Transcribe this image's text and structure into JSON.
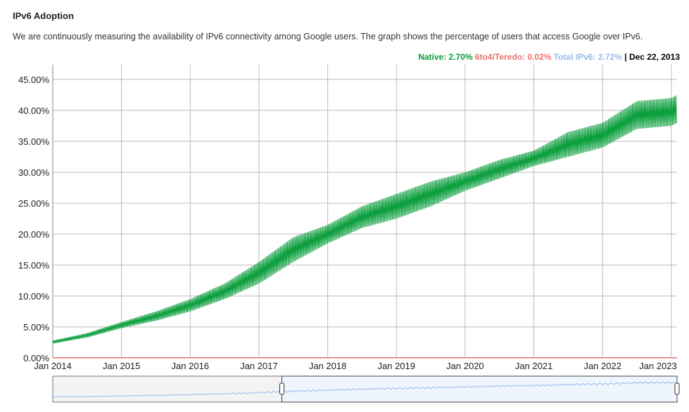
{
  "header": {
    "title": "IPv6 Adoption",
    "description": "We are continuously measuring the availability of IPv6 connectivity among Google users. The graph shows the percentage of users that access Google over IPv6."
  },
  "legend": {
    "native": "Native: 2.70%",
    "teredo": "6to4/Teredo: 0.02%",
    "total": "Total IPv6: 2.72%",
    "separator": " | ",
    "date": "Dec 22, 2013"
  },
  "colors": {
    "native": "#0a9e3c",
    "teredo": "#e8726b",
    "total": "#97b9ea",
    "grid": "#bbbbbb"
  },
  "chart_data": {
    "type": "line",
    "ylim": [
      0,
      45
    ],
    "yticks": [
      "0.00%",
      "5.00%",
      "10.00%",
      "15.00%",
      "20.00%",
      "25.00%",
      "30.00%",
      "35.00%",
      "40.00%",
      "45.00%"
    ],
    "xticks": [
      "Jan 2014",
      "Jan 2015",
      "Jan 2016",
      "Jan 2017",
      "Jan 2018",
      "Jan 2019",
      "Jan 2020",
      "Jan 2021",
      "Jan 2022",
      "Jan 2023"
    ],
    "xlim": [
      "2014-01",
      "2023-02"
    ],
    "grid": true,
    "series": [
      {
        "name": "Native",
        "color": "#0a9e3c",
        "weekly_range": [
          [
            "2014-01",
            2.3,
            2.8
          ],
          [
            "2014-07",
            3.3,
            4.0
          ],
          [
            "2015-01",
            4.8,
            5.8
          ],
          [
            "2015-07",
            6.0,
            7.5
          ],
          [
            "2016-01",
            7.5,
            9.5
          ],
          [
            "2016-07",
            9.5,
            12.0
          ],
          [
            "2017-01",
            12.0,
            15.5
          ],
          [
            "2017-07",
            15.5,
            19.5
          ],
          [
            "2018-01",
            18.5,
            21.5
          ],
          [
            "2018-07",
            21.0,
            24.5
          ],
          [
            "2019-01",
            22.5,
            26.5
          ],
          [
            "2019-07",
            24.5,
            28.5
          ],
          [
            "2020-01",
            27.0,
            30.0
          ],
          [
            "2020-07",
            29.0,
            32.0
          ],
          [
            "2021-01",
            31.0,
            33.5
          ],
          [
            "2021-07",
            32.5,
            36.5
          ],
          [
            "2022-01",
            34.0,
            38.0
          ],
          [
            "2022-07",
            37.0,
            41.5
          ],
          [
            "2023-01",
            37.5,
            42.0
          ],
          [
            "2023-02",
            38.0,
            42.5
          ]
        ]
      },
      {
        "name": "6to4/Teredo",
        "color": "#e8726b",
        "value": 0.02
      }
    ],
    "range_selector": {
      "selected_start": "2017-05",
      "selected_end": "2023-02"
    }
  }
}
